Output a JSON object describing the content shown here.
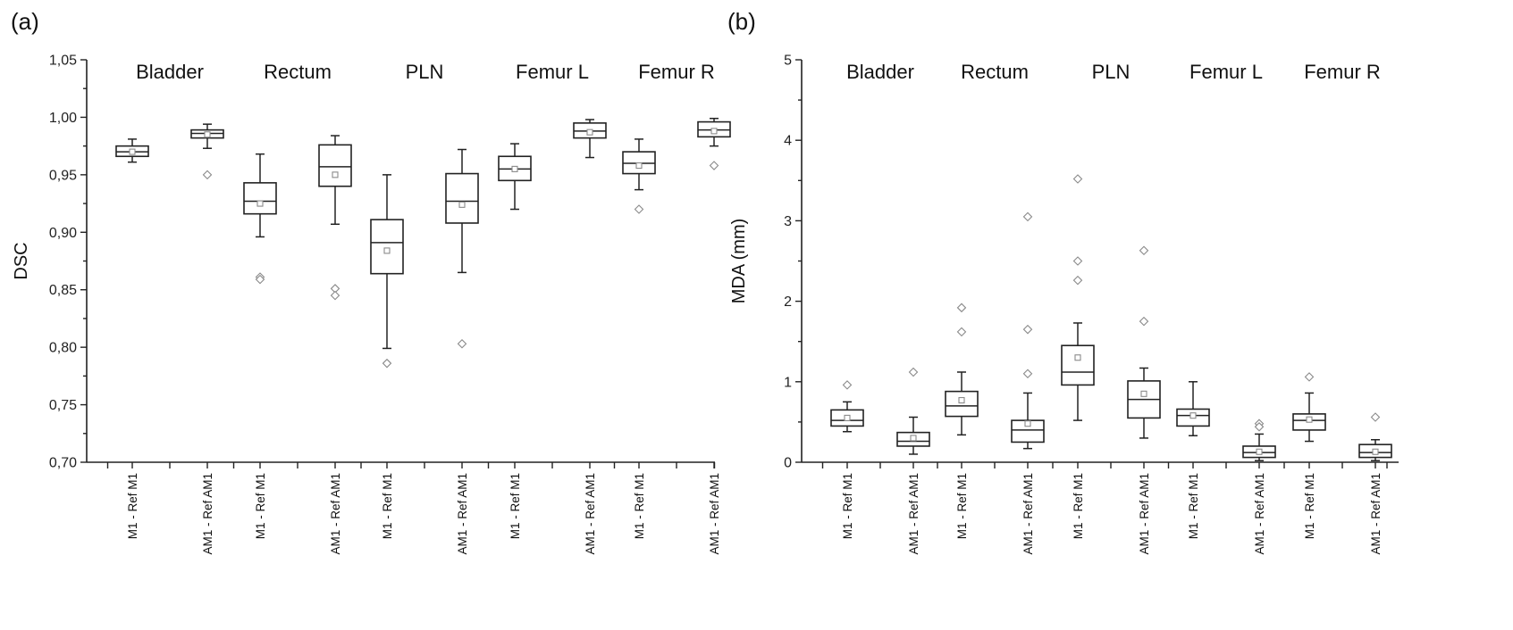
{
  "chart_data": [
    {
      "panel_label": "(a)",
      "type": "box",
      "ylabel": "DSC",
      "ylim": [
        0.7,
        1.05
      ],
      "yticks": [
        "0,70",
        "0,75",
        "0,80",
        "0,85",
        "0,90",
        "0,95",
        "1,00",
        "1,05"
      ],
      "groups": [
        "Bladder",
        "Rectum",
        "PLN",
        "Femur L",
        "Femur R"
      ],
      "categories": [
        "M1 - Ref M1",
        "AM1 - Ref AM1"
      ],
      "series": [
        {
          "group": "Bladder",
          "category": "M1 - Ref M1",
          "whislo": 0.961,
          "q1": 0.966,
          "med": 0.97,
          "q3": 0.975,
          "whishi": 0.981,
          "mean": 0.97,
          "fliers": []
        },
        {
          "group": "Bladder",
          "category": "AM1 - Ref AM1",
          "whislo": 0.973,
          "q1": 0.982,
          "med": 0.986,
          "q3": 0.989,
          "whishi": 0.994,
          "mean": 0.985,
          "fliers": [
            0.95
          ]
        },
        {
          "group": "Rectum",
          "category": "M1 - Ref M1",
          "whislo": 0.896,
          "q1": 0.916,
          "med": 0.927,
          "q3": 0.943,
          "whishi": 0.968,
          "mean": 0.925,
          "fliers": [
            0.861,
            0.859
          ]
        },
        {
          "group": "Rectum",
          "category": "AM1 - Ref AM1",
          "whislo": 0.907,
          "q1": 0.94,
          "med": 0.957,
          "q3": 0.976,
          "whishi": 0.984,
          "mean": 0.95,
          "fliers": [
            0.851,
            0.845
          ]
        },
        {
          "group": "PLN",
          "category": "M1 - Ref M1",
          "whislo": 0.799,
          "q1": 0.864,
          "med": 0.891,
          "q3": 0.911,
          "whishi": 0.95,
          "mean": 0.884,
          "fliers": [
            0.786
          ]
        },
        {
          "group": "PLN",
          "category": "AM1 - Ref AM1",
          "whislo": 0.865,
          "q1": 0.908,
          "med": 0.927,
          "q3": 0.951,
          "whishi": 0.972,
          "mean": 0.924,
          "fliers": [
            0.803
          ]
        },
        {
          "group": "Femur L",
          "category": "M1 - Ref M1",
          "whislo": 0.92,
          "q1": 0.945,
          "med": 0.955,
          "q3": 0.966,
          "whishi": 0.977,
          "mean": 0.955,
          "fliers": []
        },
        {
          "group": "Femur L",
          "category": "AM1 - Ref AM1",
          "whislo": 0.965,
          "q1": 0.982,
          "med": 0.988,
          "q3": 0.995,
          "whishi": 0.998,
          "mean": 0.987,
          "fliers": []
        },
        {
          "group": "Femur R",
          "category": "M1 - Ref M1",
          "whislo": 0.937,
          "q1": 0.951,
          "med": 0.96,
          "q3": 0.97,
          "whishi": 0.981,
          "mean": 0.958,
          "fliers": [
            0.92
          ]
        },
        {
          "group": "Femur R",
          "category": "AM1 - Ref AM1",
          "whislo": 0.975,
          "q1": 0.983,
          "med": 0.989,
          "q3": 0.996,
          "whishi": 0.999,
          "mean": 0.988,
          "fliers": [
            0.958
          ]
        }
      ]
    },
    {
      "panel_label": "(b)",
      "type": "box",
      "ylabel": "MDA (mm)",
      "ylim": [
        0,
        5
      ],
      "yticks": [
        "0",
        "1",
        "2",
        "3",
        "4",
        "5"
      ],
      "groups": [
        "Bladder",
        "Rectum",
        "PLN",
        "Femur L",
        "Femur R"
      ],
      "categories": [
        "M1 - Ref M1",
        "AM1 - Ref AM1"
      ],
      "series": [
        {
          "group": "Bladder",
          "category": "M1 - Ref M1",
          "whislo": 0.38,
          "q1": 0.45,
          "med": 0.52,
          "q3": 0.65,
          "whishi": 0.75,
          "mean": 0.55,
          "fliers": [
            0.96
          ]
        },
        {
          "group": "Bladder",
          "category": "AM1 - Ref AM1",
          "whislo": 0.1,
          "q1": 0.2,
          "med": 0.26,
          "q3": 0.37,
          "whishi": 0.56,
          "mean": 0.3,
          "fliers": [
            1.12
          ]
        },
        {
          "group": "Rectum",
          "category": "M1 - Ref M1",
          "whislo": 0.34,
          "q1": 0.57,
          "med": 0.7,
          "q3": 0.88,
          "whishi": 1.12,
          "mean": 0.77,
          "fliers": [
            1.92,
            1.62
          ]
        },
        {
          "group": "Rectum",
          "category": "AM1 - Ref AM1",
          "whislo": 0.17,
          "q1": 0.25,
          "med": 0.4,
          "q3": 0.52,
          "whishi": 0.86,
          "mean": 0.48,
          "fliers": [
            3.05,
            1.65,
            1.1
          ]
        },
        {
          "group": "PLN",
          "category": "M1 - Ref M1",
          "whislo": 0.52,
          "q1": 0.96,
          "med": 1.12,
          "q3": 1.45,
          "whishi": 1.73,
          "mean": 1.3,
          "fliers": [
            3.52,
            2.5,
            2.26
          ]
        },
        {
          "group": "PLN",
          "category": "AM1 - Ref AM1",
          "whislo": 0.3,
          "q1": 0.55,
          "med": 0.78,
          "q3": 1.01,
          "whishi": 1.17,
          "mean": 0.85,
          "fliers": [
            2.63,
            1.75
          ]
        },
        {
          "group": "Femur L",
          "category": "M1 - Ref M1",
          "whislo": 0.33,
          "q1": 0.45,
          "med": 0.58,
          "q3": 0.66,
          "whishi": 1.0,
          "mean": 0.58,
          "fliers": []
        },
        {
          "group": "Femur L",
          "category": "AM1 - Ref AM1",
          "whislo": 0.02,
          "q1": 0.06,
          "med": 0.12,
          "q3": 0.2,
          "whishi": 0.35,
          "mean": 0.13,
          "fliers": [
            0.48,
            0.44
          ]
        },
        {
          "group": "Femur R",
          "category": "M1 - Ref M1",
          "whislo": 0.26,
          "q1": 0.4,
          "med": 0.52,
          "q3": 0.6,
          "whishi": 0.86,
          "mean": 0.53,
          "fliers": [
            1.06
          ]
        },
        {
          "group": "Femur R",
          "category": "AM1 - Ref AM1",
          "whislo": 0.02,
          "q1": 0.06,
          "med": 0.12,
          "q3": 0.22,
          "whishi": 0.28,
          "mean": 0.13,
          "fliers": [
            0.56
          ]
        }
      ]
    }
  ]
}
